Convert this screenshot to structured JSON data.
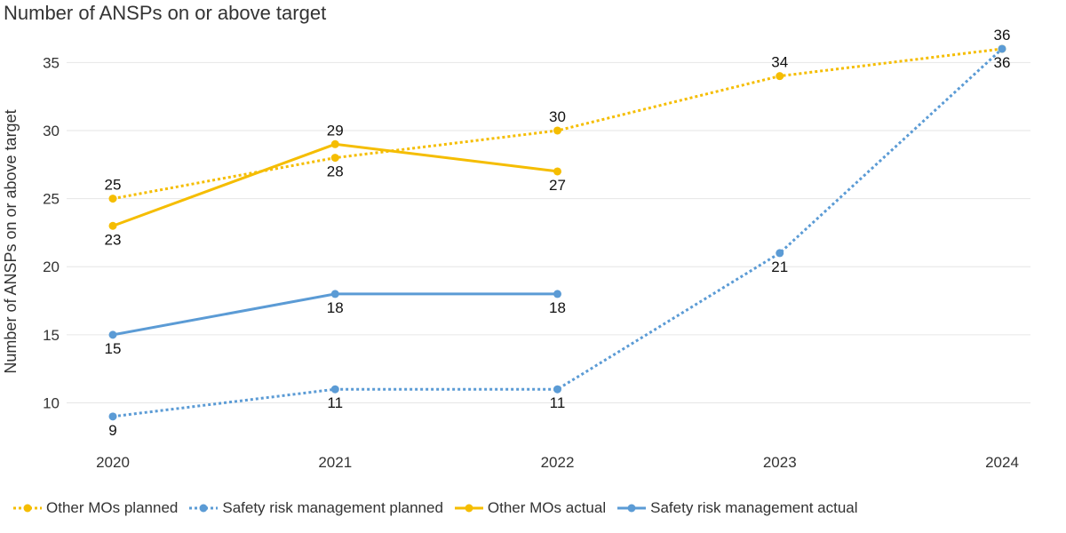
{
  "chart_data": {
    "type": "line",
    "title": "Number of ANSPs on or above target",
    "ylabel": "Number of ANSPs on or above target",
    "xlabel": "",
    "x": [
      "2020",
      "2021",
      "2022",
      "2023",
      "2024"
    ],
    "yticks": [
      10,
      15,
      20,
      25,
      30,
      35
    ],
    "ylim": [
      7,
      37.5
    ],
    "grid": true,
    "legend_position": "bottom-left",
    "series": [
      {
        "name": "Other MOs planned",
        "values": [
          25,
          28,
          30,
          34,
          36
        ],
        "color": "#F5BD00",
        "dash": "dotted",
        "label_pos": [
          "above",
          "below",
          "above",
          "above",
          "above"
        ]
      },
      {
        "name": "Safety risk management planned",
        "values": [
          9,
          11,
          11,
          21,
          36
        ],
        "color": "#5B9BD5",
        "dash": "dotted",
        "label_pos": [
          "below",
          "below",
          "below",
          "below",
          "below"
        ]
      },
      {
        "name": "Other MOs actual",
        "values": [
          23,
          29,
          27,
          null,
          null
        ],
        "color": "#F5BD00",
        "dash": "solid",
        "label_pos": [
          "below",
          "above",
          "below",
          null,
          null
        ]
      },
      {
        "name": "Safety risk management actual",
        "values": [
          15,
          18,
          18,
          null,
          null
        ],
        "color": "#5B9BD5",
        "dash": "solid",
        "label_pos": [
          "below",
          "below",
          "below",
          null,
          null
        ]
      }
    ]
  }
}
